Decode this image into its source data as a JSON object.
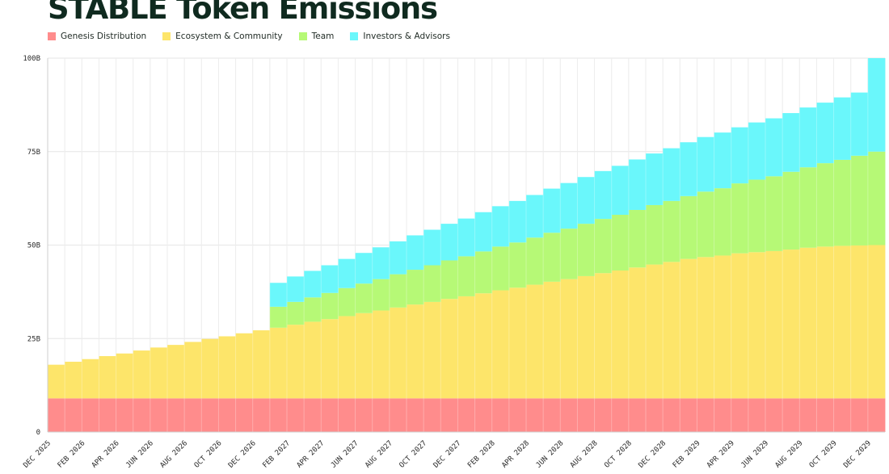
{
  "chart_data": {
    "type": "area",
    "title": "STABLE Token Emissions",
    "xlabel": "",
    "ylabel": "",
    "ylim": [
      0,
      100
    ],
    "y_ticks": [
      "0",
      "25B",
      "50B",
      "75B",
      "100B"
    ],
    "y_tick_values": [
      0,
      25,
      50,
      75,
      100
    ],
    "x_tick_labels": [
      "DEC 2025",
      "FEB 2026",
      "APR 2026",
      "JUN 2026",
      "AUG 2026",
      "OCT 2026",
      "DEC 2026",
      "FEB 2027",
      "APR 2027",
      "JUN 2027",
      "AUG 2027",
      "OCT 2027",
      "DEC 2027",
      "FEB 2028",
      "APR 2028",
      "JUN 2028",
      "AUG 2028",
      "OCT 2028",
      "DEC 2028",
      "FEB 2029",
      "APR 2029",
      "JUN 2029",
      "AUG 2029",
      "OCT 2029",
      "DEC 2029"
    ],
    "x": [
      "DEC 2025",
      "JAN 2026",
      "FEB 2026",
      "MAR 2026",
      "APR 2026",
      "MAY 2026",
      "JUN 2026",
      "JUL 2026",
      "AUG 2026",
      "SEP 2026",
      "OCT 2026",
      "NOV 2026",
      "DEC 2026",
      "JAN 2027",
      "FEB 2027",
      "MAR 2027",
      "APR 2027",
      "MAY 2027",
      "JUN 2027",
      "JUL 2027",
      "AUG 2027",
      "SEP 2027",
      "OCT 2027",
      "NOV 2027",
      "DEC 2027",
      "JAN 2028",
      "FEB 2028",
      "MAR 2028",
      "APR 2028",
      "MAY 2028",
      "JUN 2028",
      "JUL 2028",
      "AUG 2028",
      "SEP 2028",
      "OCT 2028",
      "NOV 2028",
      "DEC 2028",
      "JAN 2029",
      "FEB 2029",
      "MAR 2029",
      "APR 2029",
      "MAY 2029",
      "JUN 2029",
      "JUL 2029",
      "AUG 2029",
      "SEP 2029",
      "OCT 2029",
      "NOV 2029",
      "DEC 2029"
    ],
    "stacked": true,
    "step": true,
    "grid": true,
    "legend_position": "top-left",
    "series": [
      {
        "name": "Genesis Distribution",
        "color": "#ff8c8c",
        "values": [
          9,
          9,
          9,
          9,
          9,
          9,
          9,
          9,
          9,
          9,
          9,
          9,
          9,
          9,
          9,
          9,
          9,
          9,
          9,
          9,
          9,
          9,
          9,
          9,
          9,
          9,
          9,
          9,
          9,
          9,
          9,
          9,
          9,
          9,
          9,
          9,
          9,
          9,
          9,
          9,
          9,
          9,
          9,
          9,
          9,
          9,
          9,
          9,
          9
        ]
      },
      {
        "name": "Ecosystem & Community",
        "color": "#fde56a",
        "values": [
          9,
          9.8,
          10.5,
          11.3,
          12,
          12.8,
          13.6,
          14.3,
          15.1,
          15.9,
          16.6,
          17.4,
          18.2,
          18.9,
          19.7,
          20.5,
          21.2,
          22,
          22.8,
          23.5,
          24.3,
          25.1,
          25.8,
          26.6,
          27.3,
          28.1,
          28.9,
          29.6,
          30.4,
          31.2,
          31.9,
          32.7,
          33.5,
          34.2,
          35,
          35.8,
          36.5,
          37.3,
          37.8,
          38.2,
          38.8,
          39.1,
          39.4,
          39.8,
          40.3,
          40.6,
          40.8,
          40.9,
          41
        ]
      },
      {
        "name": "Team",
        "color": "#b6f976",
        "values": [
          0,
          0,
          0,
          0,
          0,
          0,
          0,
          0,
          0,
          0,
          0,
          0,
          0,
          5.6,
          6.1,
          6.5,
          7,
          7.5,
          7.9,
          8.4,
          8.9,
          9.3,
          9.8,
          10.3,
          10.7,
          11.2,
          11.7,
          12.1,
          12.6,
          13.1,
          13.5,
          14,
          14.5,
          14.9,
          15.4,
          15.9,
          16.3,
          16.8,
          17.5,
          18,
          18.7,
          19.4,
          20,
          20.8,
          21.5,
          22.3,
          23,
          24,
          25
        ]
      },
      {
        "name": "Investors & Advisors",
        "color": "#6af7fb",
        "values": [
          0,
          0,
          0,
          0,
          0,
          0,
          0,
          0,
          0,
          0,
          0,
          0,
          0,
          6.4,
          6.8,
          7.1,
          7.4,
          7.8,
          8.2,
          8.5,
          8.8,
          9.2,
          9.5,
          9.8,
          10.1,
          10.5,
          10.8,
          11.1,
          11.4,
          11.8,
          12.2,
          12.5,
          12.8,
          13.1,
          13.5,
          13.8,
          14.1,
          14.4,
          14.6,
          14.9,
          15,
          15.3,
          15.5,
          15.7,
          16,
          16.2,
          16.7,
          16.9,
          25
        ]
      }
    ]
  }
}
